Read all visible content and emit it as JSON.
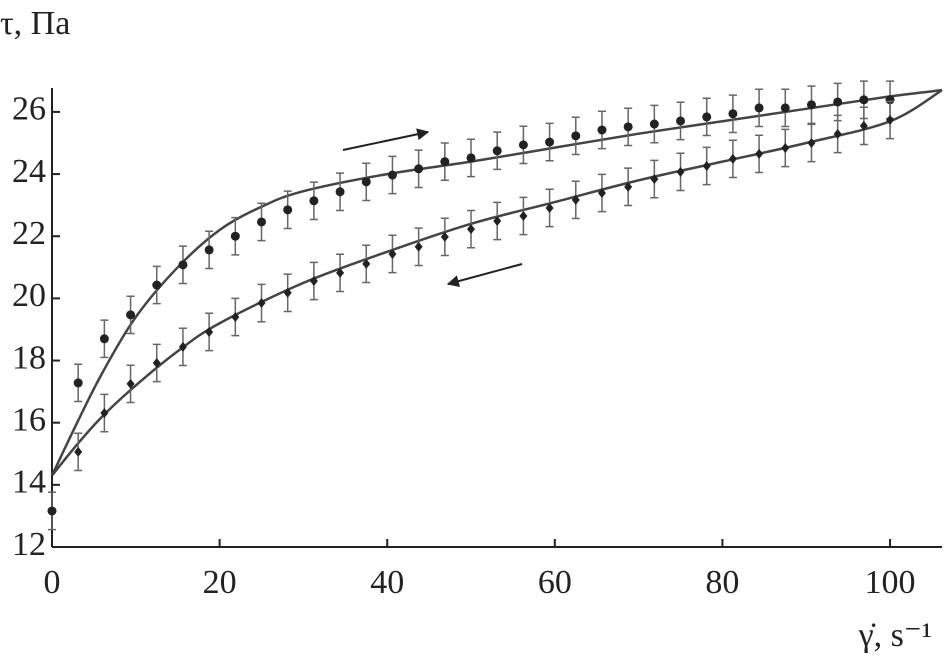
{
  "chart_data": {
    "type": "scatter",
    "y_label": "τ, Па",
    "x_label": "γ̇, s⁻¹",
    "xlim": [
      0,
      106.2
    ],
    "ylim": [
      12,
      26.77
    ],
    "xticks": [
      0,
      20,
      40,
      60,
      80,
      100
    ],
    "yticks": [
      12,
      14,
      16,
      18,
      20,
      22,
      24,
      26
    ],
    "color": "#222222",
    "series": [
      {
        "marker": "circle",
        "error": 0.6,
        "x": [
          0,
          3.125,
          6.25,
          9.375,
          12.5,
          15.625,
          18.75,
          21.875,
          25,
          28.125,
          31.25,
          34.375,
          37.5,
          40.625,
          43.75,
          46.875,
          50,
          53.125,
          56.25,
          59.375,
          62.5,
          65.625,
          68.75,
          71.875,
          75,
          78.125,
          81.25,
          84.375,
          87.5,
          90.625,
          93.75,
          96.875,
          100
        ],
        "values": [
          13.16,
          17.28,
          18.7,
          19.47,
          20.43,
          21.08,
          21.56,
          22.0,
          22.46,
          22.85,
          23.14,
          23.43,
          23.75,
          23.97,
          24.17,
          24.4,
          24.52,
          24.75,
          24.94,
          25.03,
          25.23,
          25.42,
          25.52,
          25.61,
          25.71,
          25.84,
          25.94,
          26.13,
          26.13,
          26.23,
          26.32,
          26.39,
          26.39
        ]
      },
      {
        "marker": "diamond",
        "error": 0.6,
        "x": [
          3.125,
          6.25,
          9.375,
          12.5,
          15.625,
          18.75,
          21.875,
          25,
          28.125,
          31.25,
          34.375,
          37.5,
          40.625,
          43.75,
          46.875,
          50,
          53.125,
          56.25,
          59.375,
          62.5,
          65.625,
          68.75,
          71.875,
          75,
          78.125,
          81.25,
          84.375,
          87.5,
          90.625,
          93.75,
          96.875,
          100
        ],
        "values": [
          15.06,
          16.31,
          17.25,
          17.92,
          18.44,
          18.92,
          19.4,
          19.85,
          20.18,
          20.56,
          20.82,
          21.11,
          21.43,
          21.66,
          21.98,
          22.23,
          22.49,
          22.65,
          22.91,
          23.17,
          23.39,
          23.59,
          23.84,
          24.07,
          24.26,
          24.49,
          24.65,
          24.84,
          25.0,
          25.29,
          25.55,
          25.74
        ]
      }
    ],
    "curves": [
      {
        "x": [
          0,
          3,
          6,
          10,
          15,
          20,
          25,
          30,
          40,
          50,
          60,
          70,
          80,
          90,
          100,
          106.2
        ],
        "values": [
          14.3,
          16.0,
          17.6,
          19.4,
          21.0,
          22.2,
          22.95,
          23.45,
          24.0,
          24.4,
          24.85,
          25.3,
          25.7,
          26.1,
          26.5,
          26.7
        ]
      },
      {
        "x": [
          0,
          3,
          6,
          10,
          15,
          20,
          30,
          40,
          50,
          60,
          70,
          80,
          90,
          100,
          106.2
        ],
        "values": [
          14.3,
          15.3,
          16.2,
          17.2,
          18.3,
          19.2,
          20.5,
          21.5,
          22.4,
          23.1,
          23.8,
          24.4,
          25.0,
          25.7,
          26.7
        ]
      }
    ]
  }
}
